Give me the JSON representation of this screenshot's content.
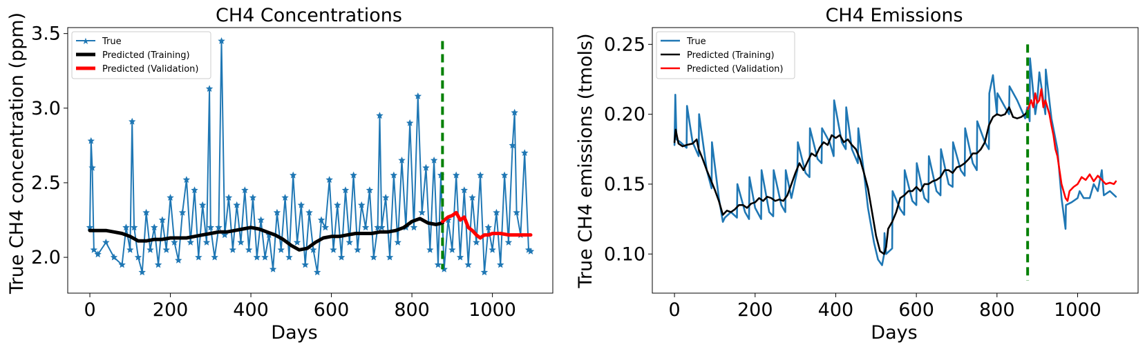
{
  "chart_data": [
    {
      "type": "line",
      "title": "CH4 Concentrations",
      "xlabel": "Days",
      "ylabel": "True CH4 concentration (ppm)",
      "xlim": [
        -55,
        1150
      ],
      "ylim": [
        1.76,
        3.54
      ],
      "xticks": [
        0,
        200,
        400,
        600,
        800,
        1000
      ],
      "xtick_labels": [
        "0",
        "200",
        "400",
        "600",
        "800",
        "1000"
      ],
      "yticks": [
        2.0,
        2.5,
        3.0,
        3.5
      ],
      "ytick_labels": [
        "2.0",
        "2.5",
        "3.0",
        "3.5"
      ],
      "legend_position": "top-left",
      "split_day": 876,
      "split_line": {
        "color": "#008000",
        "y_range": [
          1.92,
          3.45
        ]
      },
      "series": [
        {
          "name": "True",
          "style": "line-star",
          "color": "#1f77b4",
          "x": [
            0,
            3,
            6,
            10,
            20,
            40,
            60,
            80,
            90,
            100,
            105,
            110,
            120,
            130,
            140,
            150,
            160,
            170,
            180,
            190,
            200,
            210,
            220,
            230,
            240,
            250,
            260,
            270,
            280,
            290,
            297,
            300,
            310,
            320,
            327,
            335,
            345,
            355,
            365,
            375,
            385,
            395,
            405,
            415,
            425,
            435,
            445,
            455,
            465,
            475,
            485,
            495,
            505,
            515,
            525,
            535,
            545,
            555,
            565,
            575,
            585,
            595,
            605,
            615,
            625,
            635,
            645,
            655,
            665,
            675,
            685,
            695,
            705,
            715,
            720,
            725,
            735,
            745,
            755,
            765,
            775,
            785,
            795,
            805,
            815,
            825,
            835,
            845,
            855,
            865,
            872,
            880,
            890,
            900,
            910,
            920,
            930,
            940,
            950,
            960,
            970,
            980,
            990,
            1000,
            1010,
            1020,
            1030,
            1040,
            1050,
            1055,
            1060,
            1070,
            1080,
            1090,
            1095
          ],
          "y": [
            2.2,
            2.78,
            2.6,
            2.05,
            2.02,
            2.1,
            2.0,
            1.95,
            2.2,
            2.05,
            2.91,
            2.2,
            2.0,
            1.9,
            2.3,
            2.05,
            2.2,
            1.95,
            2.25,
            2.05,
            2.4,
            2.1,
            1.98,
            2.3,
            2.52,
            2.1,
            2.45,
            2.0,
            2.35,
            2.1,
            3.13,
            2.2,
            2.0,
            2.2,
            3.45,
            2.15,
            2.4,
            2.05,
            2.35,
            2.1,
            2.45,
            2.05,
            2.4,
            2.0,
            2.25,
            2.0,
            2.15,
            1.92,
            2.3,
            2.05,
            2.4,
            2.0,
            2.55,
            2.1,
            2.35,
            1.95,
            2.3,
            2.05,
            1.9,
            2.25,
            2.2,
            2.52,
            2.05,
            2.35,
            2.0,
            2.45,
            2.1,
            2.55,
            2.05,
            2.35,
            2.2,
            2.45,
            2.0,
            2.2,
            2.95,
            2.2,
            2.4,
            2.0,
            2.55,
            2.1,
            2.65,
            2.2,
            2.9,
            2.2,
            3.08,
            2.3,
            2.6,
            2.05,
            2.65,
            1.95,
            2.55,
            1.92,
            2.25,
            2.05,
            2.55,
            2.0,
            2.45,
            1.95,
            2.4,
            2.1,
            2.55,
            1.9,
            2.2,
            2.05,
            2.3,
            1.95,
            2.55,
            2.1,
            2.75,
            2.97,
            2.3,
            2.15,
            2.7,
            2.05,
            2.04
          ]
        },
        {
          "name": "Predicted (Training)",
          "style": "line",
          "color": "#000000",
          "x": [
            0,
            20,
            40,
            60,
            80,
            100,
            120,
            140,
            160,
            180,
            200,
            220,
            240,
            260,
            280,
            300,
            320,
            340,
            360,
            380,
            400,
            420,
            440,
            460,
            480,
            500,
            520,
            540,
            560,
            580,
            600,
            620,
            640,
            660,
            680,
            700,
            720,
            740,
            760,
            780,
            800,
            820,
            840,
            860,
            876
          ],
          "y": [
            2.18,
            2.18,
            2.18,
            2.17,
            2.16,
            2.14,
            2.11,
            2.11,
            2.12,
            2.12,
            2.13,
            2.13,
            2.13,
            2.14,
            2.15,
            2.16,
            2.17,
            2.17,
            2.18,
            2.19,
            2.2,
            2.19,
            2.17,
            2.15,
            2.12,
            2.08,
            2.05,
            2.06,
            2.1,
            2.13,
            2.14,
            2.14,
            2.15,
            2.16,
            2.16,
            2.16,
            2.17,
            2.17,
            2.18,
            2.2,
            2.24,
            2.26,
            2.23,
            2.22,
            2.23
          ]
        },
        {
          "name": "Predicted (Validation)",
          "style": "line",
          "color": "#ff0000",
          "x": [
            876,
            890,
            900,
            910,
            920,
            930,
            940,
            950,
            960,
            970,
            980,
            990,
            1000,
            1020,
            1040,
            1060,
            1080,
            1095
          ],
          "y": [
            2.24,
            2.27,
            2.28,
            2.3,
            2.25,
            2.27,
            2.2,
            2.18,
            2.15,
            2.13,
            2.15,
            2.15,
            2.16,
            2.16,
            2.15,
            2.15,
            2.15,
            2.15
          ]
        }
      ]
    },
    {
      "type": "line",
      "title": "CH4 Emissions",
      "xlabel": "Days",
      "ylabel": "True CH4 emissions (tmols)",
      "xlim": [
        -55,
        1150
      ],
      "ylim": [
        0.072,
        0.262
      ],
      "xticks": [
        0,
        200,
        400,
        600,
        800,
        1000
      ],
      "xtick_labels": [
        "0",
        "200",
        "400",
        "600",
        "800",
        "1000"
      ],
      "yticks": [
        0.1,
        0.15,
        0.2,
        0.25
      ],
      "ytick_labels": [
        "0.10",
        "0.15",
        "0.20",
        "0.25"
      ],
      "legend_position": "top-left",
      "split_day": 876,
      "split_line": {
        "color": "#008000",
        "y_range": [
          0.081,
          0.25
        ]
      },
      "series": [
        {
          "name": "True",
          "style": "line",
          "color": "#1f77b4",
          "x": [
            0,
            2,
            5,
            15,
            30,
            31,
            45,
            60,
            61,
            80,
            92,
            93,
            110,
            120,
            125,
            140,
            155,
            156,
            175,
            185,
            186,
            200,
            215,
            216,
            235,
            245,
            246,
            265,
            275,
            276,
            290,
            305,
            306,
            325,
            335,
            336,
            355,
            365,
            366,
            385,
            395,
            396,
            415,
            425,
            426,
            440,
            455,
            456,
            470,
            480,
            495,
            505,
            515,
            520,
            521,
            525,
            540,
            541,
            560,
            570,
            571,
            590,
            600,
            601,
            620,
            630,
            631,
            650,
            660,
            661,
            680,
            690,
            691,
            710,
            720,
            721,
            740,
            750,
            751,
            770,
            780,
            781,
            790,
            800,
            801,
            820,
            830,
            831,
            850,
            870,
            875,
            881,
            882,
            895,
            900,
            905,
            920,
            921,
            935,
            950,
            960,
            970,
            971,
            985,
            1000,
            1005,
            1015,
            1030,
            1040,
            1050,
            1060,
            1065,
            1080,
            1095
          ],
          "y": [
            0.178,
            0.214,
            0.182,
            0.18,
            0.176,
            0.206,
            0.18,
            0.17,
            0.2,
            0.16,
            0.147,
            0.18,
            0.14,
            0.123,
            0.126,
            0.13,
            0.126,
            0.15,
            0.13,
            0.125,
            0.155,
            0.133,
            0.125,
            0.16,
            0.13,
            0.127,
            0.16,
            0.135,
            0.13,
            0.16,
            0.14,
            0.16,
            0.18,
            0.158,
            0.155,
            0.19,
            0.168,
            0.165,
            0.19,
            0.18,
            0.17,
            0.21,
            0.18,
            0.175,
            0.205,
            0.175,
            0.165,
            0.19,
            0.158,
            0.133,
            0.108,
            0.096,
            0.092,
            0.1,
            0.115,
            0.1,
            0.104,
            0.145,
            0.132,
            0.128,
            0.16,
            0.138,
            0.135,
            0.165,
            0.14,
            0.137,
            0.17,
            0.145,
            0.142,
            0.175,
            0.15,
            0.148,
            0.18,
            0.16,
            0.156,
            0.19,
            0.165,
            0.16,
            0.195,
            0.18,
            0.175,
            0.215,
            0.228,
            0.2,
            0.215,
            0.205,
            0.2,
            0.22,
            0.21,
            0.197,
            0.205,
            0.195,
            0.24,
            0.2,
            0.21,
            0.23,
            0.2,
            0.232,
            0.197,
            0.175,
            0.14,
            0.118,
            0.135,
            0.137,
            0.14,
            0.145,
            0.14,
            0.14,
            0.15,
            0.145,
            0.16,
            0.142,
            0.145,
            0.141
          ]
        },
        {
          "name": "Predicted (Training)",
          "style": "line",
          "color": "#000000",
          "x": [
            0,
            3,
            10,
            20,
            30,
            45,
            55,
            60,
            70,
            80,
            90,
            100,
            110,
            120,
            130,
            140,
            150,
            160,
            170,
            180,
            190,
            200,
            210,
            220,
            230,
            240,
            250,
            260,
            270,
            280,
            290,
            300,
            310,
            320,
            330,
            340,
            350,
            360,
            370,
            380,
            390,
            400,
            410,
            420,
            430,
            440,
            450,
            460,
            470,
            480,
            490,
            500,
            510,
            520,
            525,
            530,
            540,
            550,
            560,
            570,
            580,
            590,
            600,
            610,
            620,
            630,
            640,
            650,
            660,
            670,
            680,
            690,
            700,
            710,
            720,
            730,
            740,
            750,
            760,
            770,
            780,
            790,
            800,
            810,
            820,
            830,
            840,
            850,
            860,
            870,
            876
          ],
          "y": [
            0.18,
            0.189,
            0.179,
            0.177,
            0.178,
            0.179,
            0.182,
            0.175,
            0.168,
            0.16,
            0.153,
            0.146,
            0.138,
            0.128,
            0.131,
            0.13,
            0.132,
            0.135,
            0.135,
            0.133,
            0.136,
            0.137,
            0.14,
            0.138,
            0.141,
            0.14,
            0.138,
            0.139,
            0.138,
            0.142,
            0.15,
            0.158,
            0.165,
            0.16,
            0.166,
            0.172,
            0.17,
            0.176,
            0.18,
            0.178,
            0.185,
            0.183,
            0.185,
            0.18,
            0.182,
            0.178,
            0.175,
            0.168,
            0.158,
            0.147,
            0.13,
            0.113,
            0.102,
            0.1,
            0.105,
            0.118,
            0.123,
            0.13,
            0.14,
            0.142,
            0.145,
            0.145,
            0.148,
            0.145,
            0.15,
            0.15,
            0.152,
            0.153,
            0.155,
            0.16,
            0.16,
            0.158,
            0.162,
            0.163,
            0.165,
            0.168,
            0.172,
            0.172,
            0.175,
            0.18,
            0.192,
            0.198,
            0.2,
            0.199,
            0.2,
            0.205,
            0.198,
            0.197,
            0.198,
            0.2,
            0.202
          ]
        },
        {
          "name": "Predicted (Validation)",
          "style": "line",
          "color": "#ff0000",
          "x": [
            876,
            885,
            890,
            895,
            900,
            905,
            910,
            915,
            920,
            930,
            935,
            940,
            945,
            950,
            960,
            970,
            975,
            980,
            990,
            1000,
            1010,
            1020,
            1030,
            1040,
            1050,
            1060,
            1070,
            1080,
            1090,
            1095
          ],
          "y": [
            0.203,
            0.21,
            0.205,
            0.215,
            0.208,
            0.21,
            0.218,
            0.205,
            0.21,
            0.2,
            0.192,
            0.185,
            0.175,
            0.17,
            0.15,
            0.14,
            0.138,
            0.145,
            0.148,
            0.15,
            0.155,
            0.153,
            0.157,
            0.152,
            0.156,
            0.153,
            0.15,
            0.151,
            0.15,
            0.152
          ]
        }
      ]
    }
  ]
}
